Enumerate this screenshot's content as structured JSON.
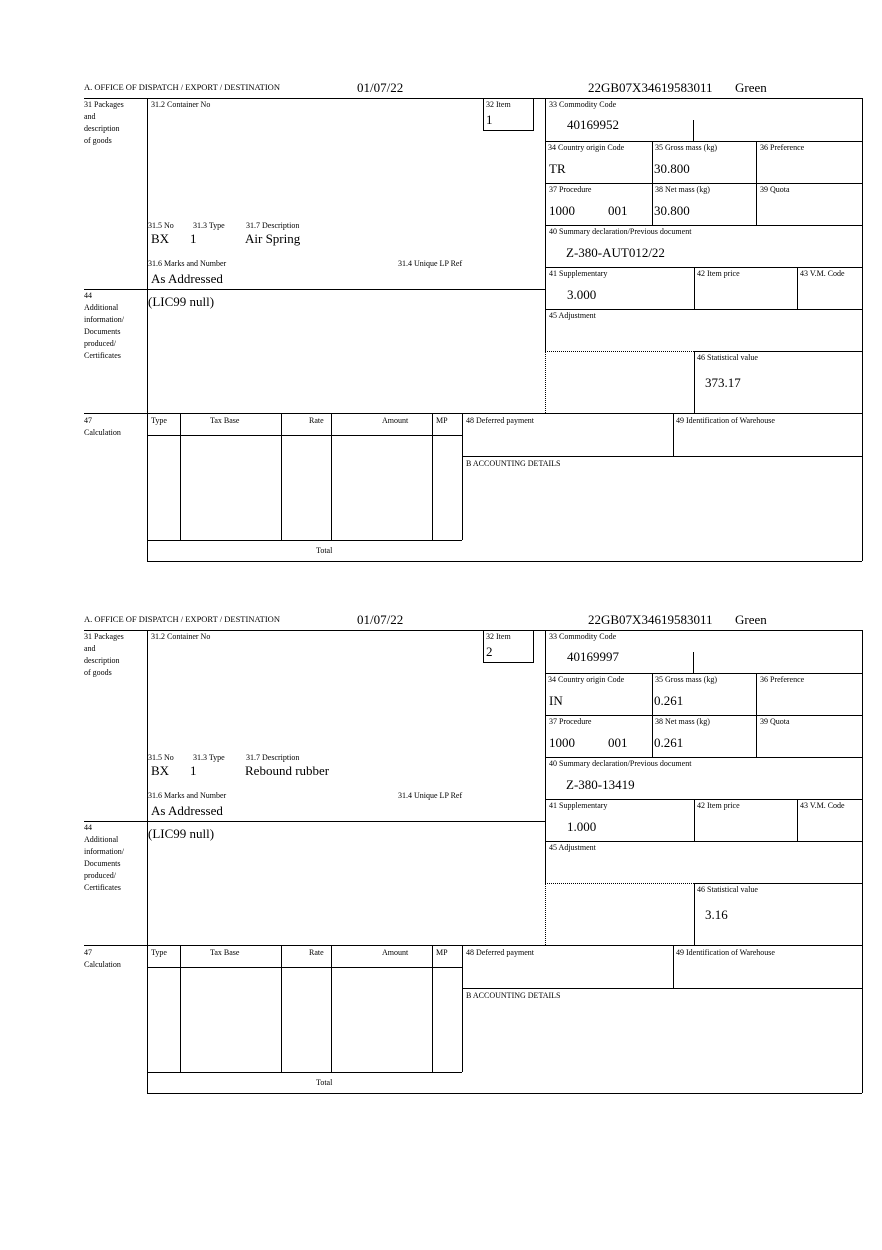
{
  "labels": {
    "office": "A. OFFICE OF DISPATCH / EXPORT / DESTINATION",
    "l31": [
      "31 Packages",
      "and",
      "description",
      "of goods"
    ],
    "l31_2": "31.2 Container No",
    "l32": "32 Item",
    "l33": "33 Commodity Code",
    "l34": "34 Country origin Code",
    "l35": "35 Gross mass (kg)",
    "l36": "36 Preference",
    "l37": "37 Procedure",
    "l38": "38 Net mass (kg)",
    "l39": "39 Quota",
    "l40": "40 Summary declaration/Previous document",
    "l41": "41 Supplementary",
    "l42": "42 Item price",
    "l43": "43 V.M. Code",
    "l31_5": "31.5 No",
    "l31_3": "31.3 Type",
    "l31_7": "31.7 Description",
    "l31_6": "31.6 Marks and Number",
    "l31_4": "31.4 Unique LP Ref",
    "l44": [
      "44",
      "Additional",
      "information/",
      "Documents",
      "produced/",
      "Certificates"
    ],
    "l45": "45 Adjustment",
    "l46": "46 Statistical value",
    "l47": [
      "47",
      "Calculation"
    ],
    "calc_cols": [
      "Type",
      "Tax Base",
      "Rate",
      "Amount",
      "MP"
    ],
    "total": "Total",
    "l48": "48 Deferred payment",
    "l49": "49 Identification of Warehouse",
    "lB": "B ACCOUNTING DETAILS"
  },
  "blocks": [
    {
      "date": "01/07/22",
      "reference": "22GB07X34619583011",
      "route": "Green",
      "item": "1",
      "commodity_code": "40169952",
      "country_origin": "TR",
      "gross_mass": "30.800",
      "procedure": "1000",
      "procedure_add": "001",
      "net_mass": "30.800",
      "previous_document": "Z-380-AUT012/22",
      "package_no": "BX",
      "package_type": "1",
      "description": "Air Spring",
      "marks": "As Addressed",
      "supplementary": "3.000",
      "additional_info": "(LIC99 null)",
      "statistical_value": "373.17"
    },
    {
      "date": "01/07/22",
      "reference": "22GB07X34619583011",
      "route": "Green",
      "item": "2",
      "commodity_code": "40169997",
      "country_origin": "IN",
      "gross_mass": "0.261",
      "procedure": "1000",
      "procedure_add": "001",
      "net_mass": "0.261",
      "previous_document": "Z-380-13419",
      "package_no": "BX",
      "package_type": "1",
      "description": "Rebound rubber",
      "marks": "As Addressed",
      "supplementary": "1.000",
      "additional_info": "(LIC99 null)",
      "statistical_value": "3.16"
    }
  ]
}
